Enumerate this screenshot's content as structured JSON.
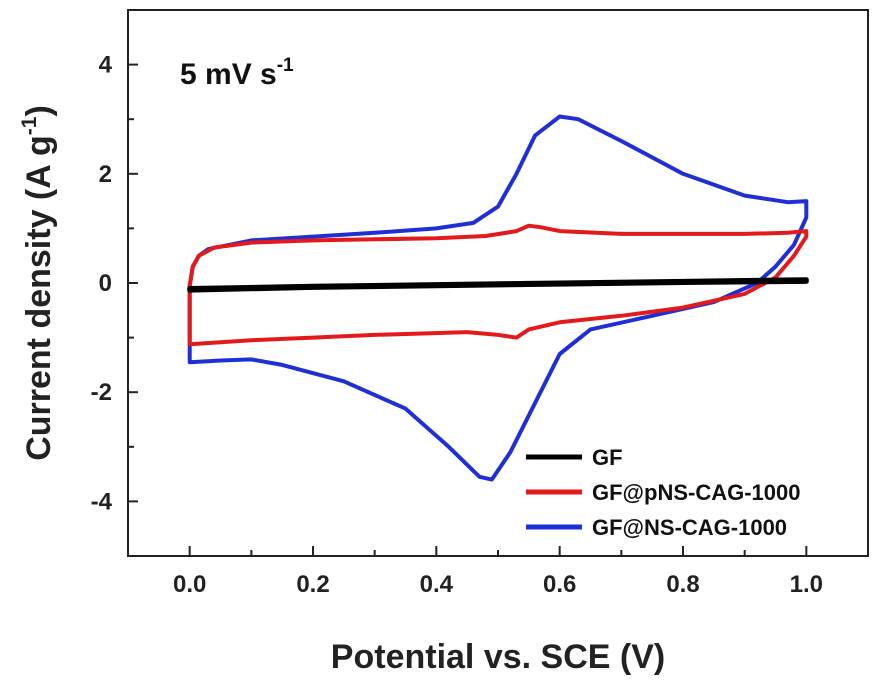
{
  "chart_data": {
    "type": "line",
    "title": "",
    "annotation": {
      "text": "5 mV s",
      "superscript": "-1"
    },
    "xlabel": "Potential vs. SCE (V)",
    "ylabel": {
      "text": "Current density (A g",
      "superscript": "-1",
      "close": ")"
    },
    "xlim": [
      -0.1,
      1.1
    ],
    "ylim": [
      -5,
      5
    ],
    "x_ticks": [
      "0.0",
      "0.2",
      "0.4",
      "0.6",
      "0.8",
      "1.0"
    ],
    "x_tick_values": [
      0.0,
      0.2,
      0.4,
      0.6,
      0.8,
      1.0
    ],
    "y_ticks": [
      "4",
      "2",
      "0",
      "-2",
      "-4"
    ],
    "y_tick_values": [
      4,
      2,
      0,
      -2,
      -4
    ],
    "grid": false,
    "legend_position": "bottom-right",
    "series": [
      {
        "name": "GF",
        "color": "#000000",
        "points": [
          [
            0.0,
            -0.1
          ],
          [
            0.2,
            -0.06
          ],
          [
            0.4,
            -0.03
          ],
          [
            0.6,
            0.0
          ],
          [
            0.8,
            0.03
          ],
          [
            1.0,
            0.06
          ],
          [
            1.0,
            0.03
          ],
          [
            0.8,
            0.01
          ],
          [
            0.6,
            -0.02
          ],
          [
            0.4,
            -0.05
          ],
          [
            0.2,
            -0.08
          ],
          [
            0.0,
            -0.13
          ],
          [
            0.0,
            -0.1
          ]
        ]
      },
      {
        "name": "GF@pNS-CAG-1000",
        "color": "#e31a1c",
        "points": [
          [
            0.0,
            -0.05
          ],
          [
            0.005,
            0.3
          ],
          [
            0.015,
            0.5
          ],
          [
            0.04,
            0.65
          ],
          [
            0.1,
            0.74
          ],
          [
            0.2,
            0.78
          ],
          [
            0.3,
            0.8
          ],
          [
            0.4,
            0.82
          ],
          [
            0.48,
            0.86
          ],
          [
            0.53,
            0.95
          ],
          [
            0.55,
            1.05
          ],
          [
            0.57,
            1.02
          ],
          [
            0.6,
            0.95
          ],
          [
            0.7,
            0.9
          ],
          [
            0.8,
            0.9
          ],
          [
            0.9,
            0.9
          ],
          [
            0.97,
            0.92
          ],
          [
            1.0,
            0.95
          ],
          [
            1.0,
            0.85
          ],
          [
            0.98,
            0.5
          ],
          [
            0.95,
            0.1
          ],
          [
            0.9,
            -0.2
          ],
          [
            0.8,
            -0.45
          ],
          [
            0.7,
            -0.6
          ],
          [
            0.6,
            -0.72
          ],
          [
            0.55,
            -0.85
          ],
          [
            0.53,
            -1.0
          ],
          [
            0.5,
            -0.95
          ],
          [
            0.45,
            -0.9
          ],
          [
            0.3,
            -0.95
          ],
          [
            0.2,
            -1.0
          ],
          [
            0.1,
            -1.05
          ],
          [
            0.0,
            -1.12
          ],
          [
            0.0,
            -0.05
          ]
        ]
      },
      {
        "name": "GF@NS-CAG-1000",
        "color": "#1f2fd6",
        "points": [
          [
            0.0,
            -0.05
          ],
          [
            0.005,
            0.3
          ],
          [
            0.015,
            0.5
          ],
          [
            0.03,
            0.62
          ],
          [
            0.1,
            0.78
          ],
          [
            0.2,
            0.85
          ],
          [
            0.3,
            0.92
          ],
          [
            0.4,
            1.0
          ],
          [
            0.46,
            1.1
          ],
          [
            0.5,
            1.4
          ],
          [
            0.53,
            2.0
          ],
          [
            0.56,
            2.7
          ],
          [
            0.6,
            3.05
          ],
          [
            0.63,
            3.0
          ],
          [
            0.7,
            2.6
          ],
          [
            0.8,
            2.0
          ],
          [
            0.9,
            1.6
          ],
          [
            0.97,
            1.48
          ],
          [
            1.0,
            1.5
          ],
          [
            1.0,
            1.2
          ],
          [
            0.98,
            0.7
          ],
          [
            0.95,
            0.3
          ],
          [
            0.92,
            0.0
          ],
          [
            0.85,
            -0.35
          ],
          [
            0.75,
            -0.6
          ],
          [
            0.65,
            -0.85
          ],
          [
            0.6,
            -1.3
          ],
          [
            0.56,
            -2.2
          ],
          [
            0.52,
            -3.1
          ],
          [
            0.49,
            -3.6
          ],
          [
            0.47,
            -3.55
          ],
          [
            0.42,
            -3.0
          ],
          [
            0.35,
            -2.3
          ],
          [
            0.25,
            -1.8
          ],
          [
            0.15,
            -1.5
          ],
          [
            0.1,
            -1.4
          ],
          [
            0.05,
            -1.42
          ],
          [
            0.0,
            -1.45
          ],
          [
            0.0,
            -0.05
          ]
        ]
      }
    ]
  }
}
